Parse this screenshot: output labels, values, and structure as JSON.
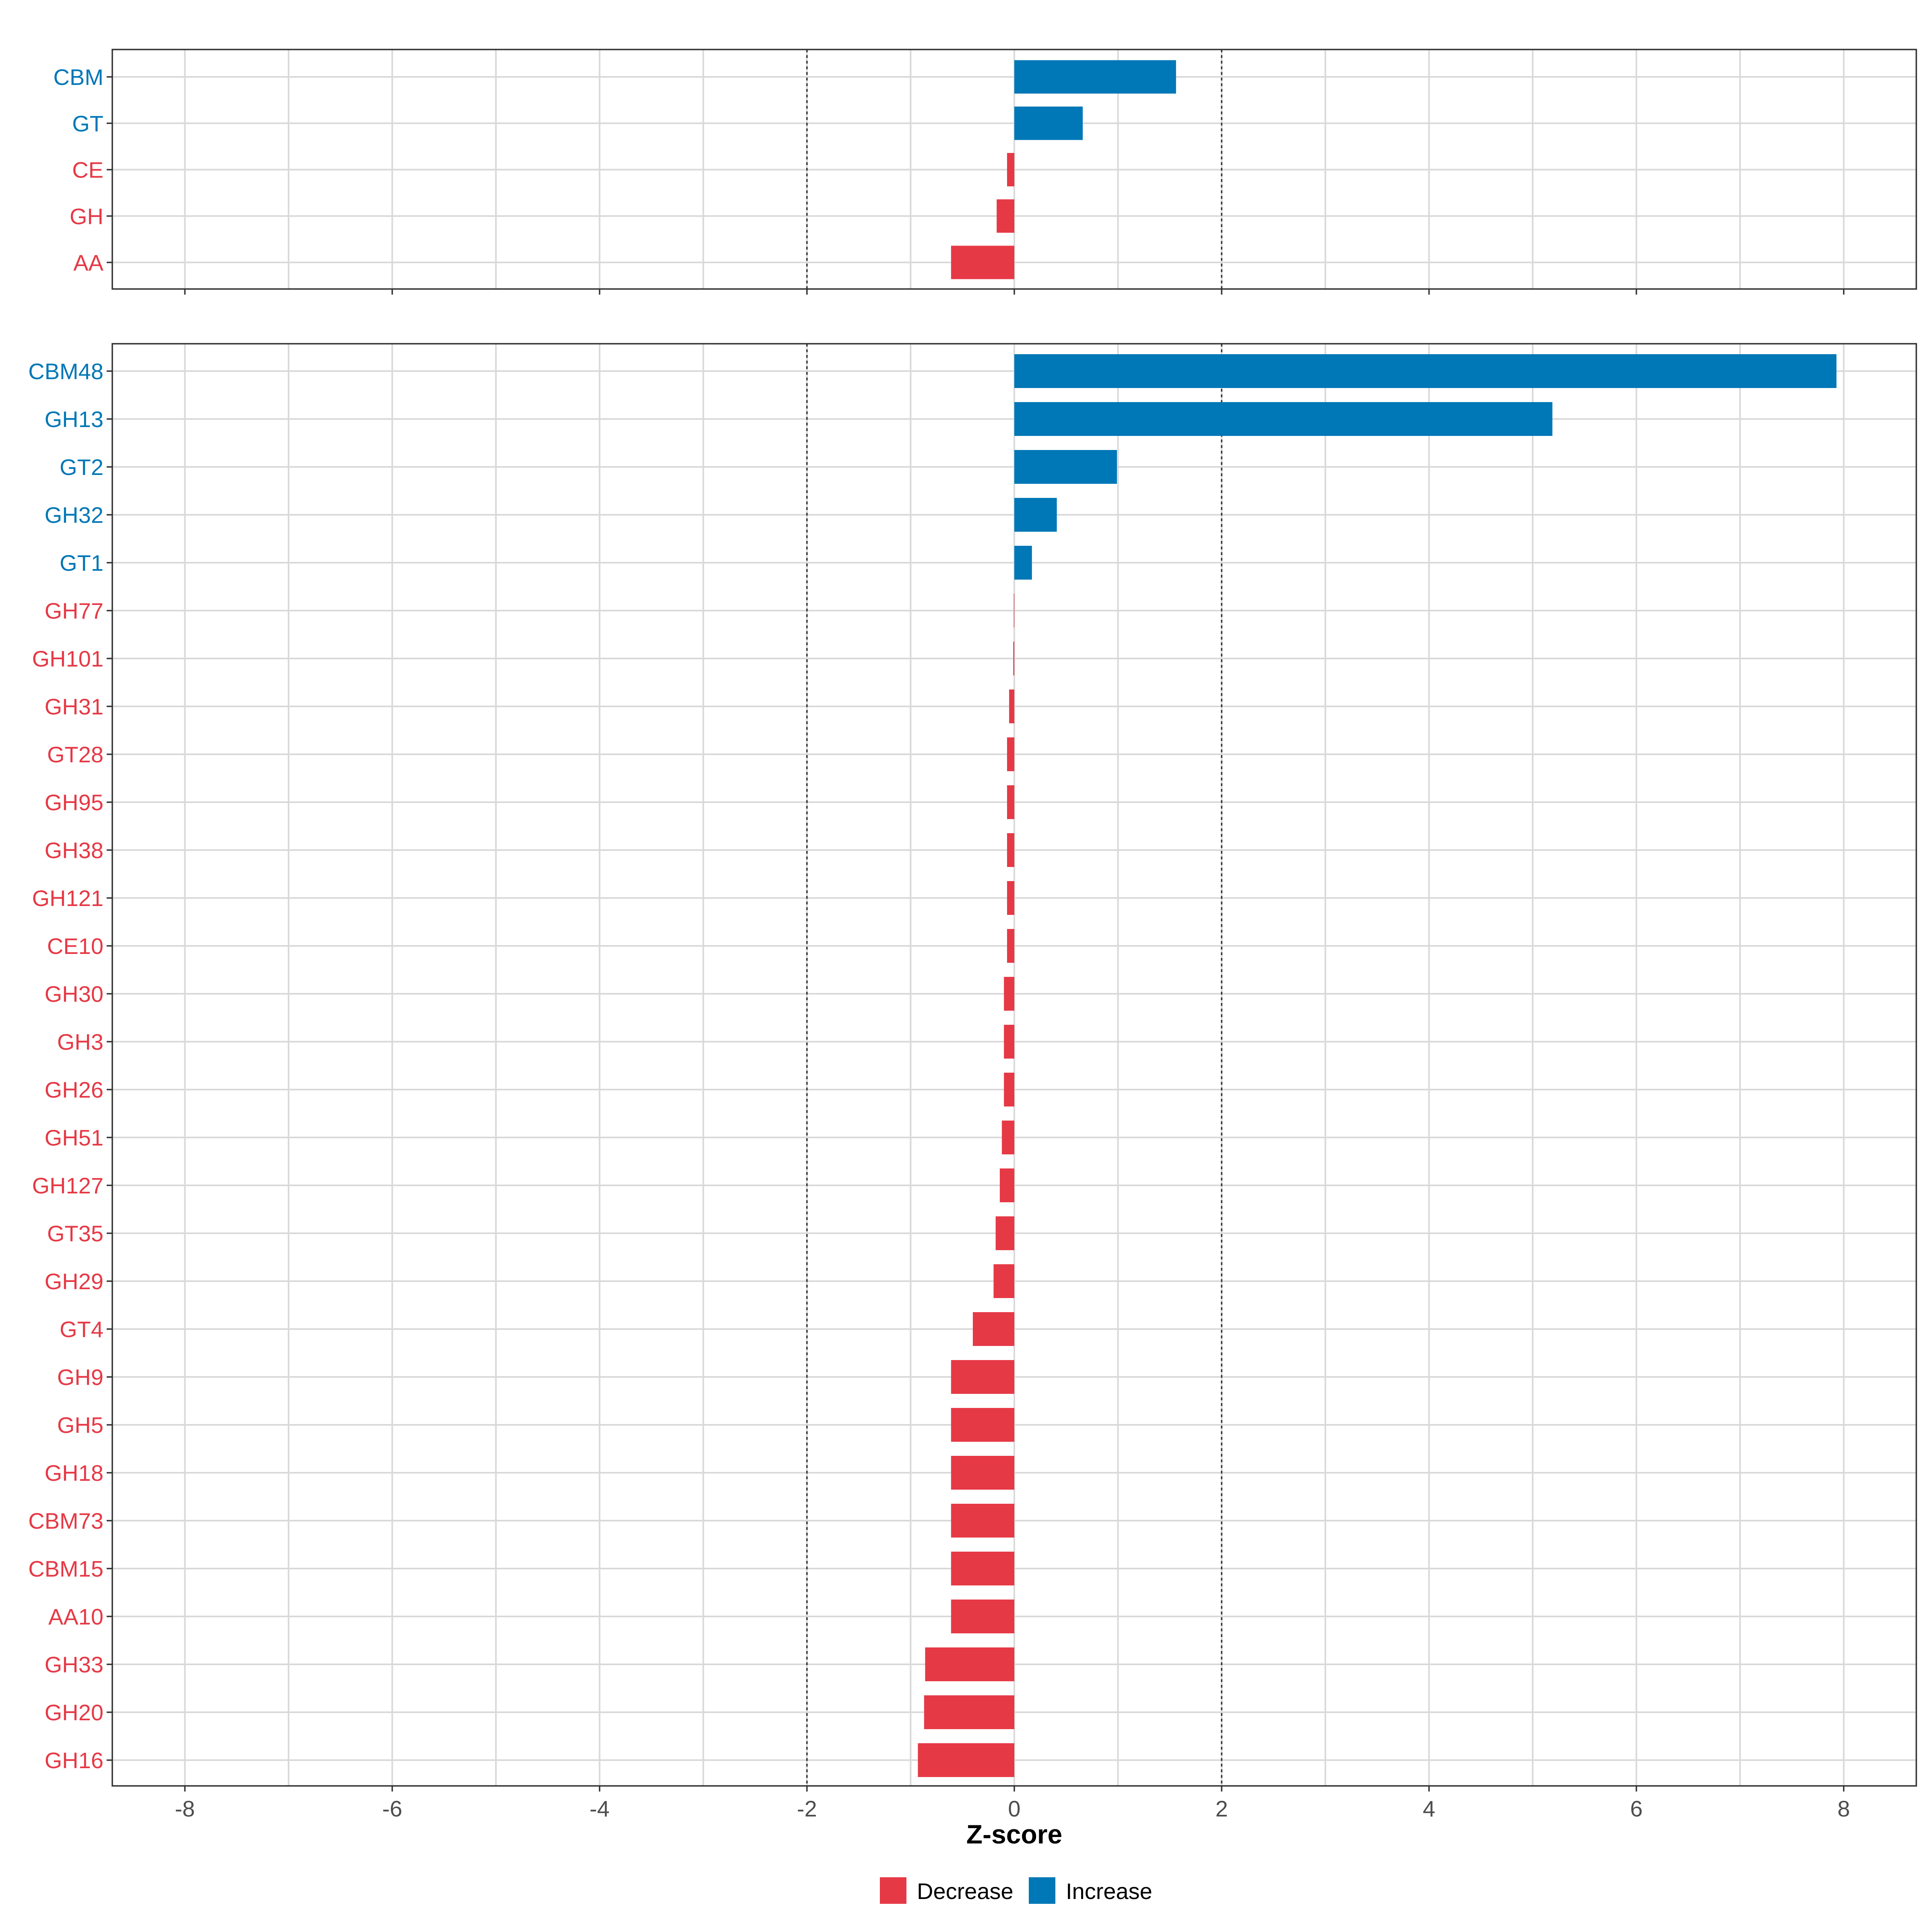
{
  "chart_data": {
    "type": "bar",
    "orientation": "horizontal",
    "xlabel": "Z-score",
    "xlim": [
      -8.7,
      8.7
    ],
    "xticks": [
      -8,
      -6,
      -4,
      -2,
      0,
      2,
      4,
      6,
      8
    ],
    "xtick_labels": [
      "-8",
      "-6",
      "-4",
      "-2",
      "0",
      "2",
      "4",
      "6",
      "8"
    ],
    "reference_lines": [
      -2,
      2
    ],
    "grid": true,
    "legend": {
      "placement": "bottom",
      "entries": [
        {
          "name": "Decrease",
          "color": "#E63946"
        },
        {
          "name": "Increase",
          "color": "#0077B6"
        }
      ]
    },
    "colors": {
      "increase": "#0077B6",
      "decrease": "#E63946"
    },
    "panels": [
      {
        "name": "class",
        "categories": [
          "CBM",
          "GT",
          "CE",
          "GH",
          "AA"
        ],
        "values": [
          1.56,
          0.66,
          -0.07,
          -0.17,
          -0.61
        ]
      },
      {
        "name": "family",
        "categories": [
          "CBM48",
          "GH13",
          "GT2",
          "GH32",
          "GT1",
          "GH77",
          "GH101",
          "GH31",
          "GT28",
          "GH95",
          "GH38",
          "GH121",
          "CE10",
          "GH30",
          "GH3",
          "GH26",
          "GH51",
          "GH127",
          "GT35",
          "GH29",
          "GT4",
          "GH9",
          "GH5",
          "GH18",
          "CBM73",
          "CBM15",
          "AA10",
          "GH33",
          "GH20",
          "GH16"
        ],
        "values": [
          7.93,
          5.19,
          0.99,
          0.41,
          0.17,
          -0.005,
          -0.01,
          -0.05,
          -0.07,
          -0.07,
          -0.07,
          -0.07,
          -0.07,
          -0.1,
          -0.1,
          -0.1,
          -0.12,
          -0.14,
          -0.18,
          -0.2,
          -0.4,
          -0.61,
          -0.61,
          -0.61,
          -0.61,
          -0.61,
          -0.61,
          -0.86,
          -0.87,
          -0.93
        ]
      }
    ]
  }
}
